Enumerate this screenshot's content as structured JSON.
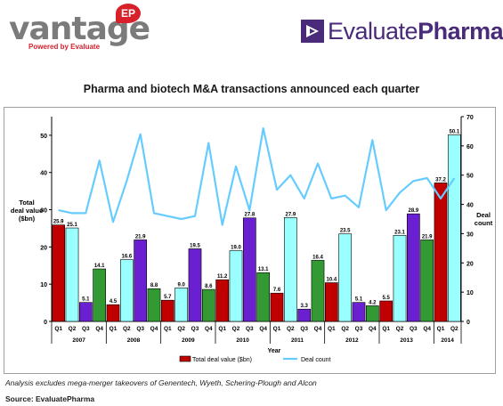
{
  "brand": {
    "vantage_word": "vantage",
    "vantage_badge": "EP",
    "vantage_tagline": "Powered by Evaluate",
    "evaluate_light": "Evaluate",
    "evaluate_bold": "Pharma",
    "evaluate_reg": "®"
  },
  "footnote": "Analysis excludes mega-merger takeovers of Genentech, Wyeth, Schering-Plough and Alcon",
  "source": "Source: EvaluatePharma",
  "chart_data": {
    "type": "bar",
    "title": "Pharma and biotech M&A transactions announced each quarter",
    "xlabel": "Year",
    "ylabel_left": [
      "Total",
      "deal value",
      "($bn)"
    ],
    "ylabel_right": [
      "Deal",
      "count"
    ],
    "ylim_left": [
      0,
      55
    ],
    "ylim_right": [
      0,
      70
    ],
    "yticks_left": [
      0,
      10,
      20,
      30,
      40,
      50
    ],
    "yticks_right": [
      0,
      10,
      20,
      30,
      40,
      50,
      60,
      70
    ],
    "grid": false,
    "legend_position": "bottom",
    "categories": [
      "Q1",
      "Q2",
      "Q3",
      "Q4",
      "Q1",
      "Q2",
      "Q3",
      "Q4",
      "Q1",
      "Q2",
      "Q3",
      "Q4",
      "Q1",
      "Q2",
      "Q3",
      "Q4",
      "Q1",
      "Q2",
      "Q3",
      "Q4",
      "Q1",
      "Q2",
      "Q3",
      "Q4",
      "Q1",
      "Q2",
      "Q3",
      "Q4",
      "Q1",
      "Q2"
    ],
    "years": [
      {
        "label": "2007",
        "start": 0,
        "end": 3
      },
      {
        "label": "2008",
        "start": 4,
        "end": 7
      },
      {
        "label": "2009",
        "start": 8,
        "end": 11
      },
      {
        "label": "2010",
        "start": 12,
        "end": 15
      },
      {
        "label": "2011",
        "start": 16,
        "end": 19
      },
      {
        "label": "2012",
        "start": 20,
        "end": 23
      },
      {
        "label": "2013",
        "start": 24,
        "end": 27
      },
      {
        "label": "2014",
        "start": 28,
        "end": 29
      }
    ],
    "quarter_colors": {
      "Q1": "#c00000",
      "Q2": "#99ffff",
      "Q3": "#6a1fd0",
      "Q4": "#339933"
    },
    "series": [
      {
        "name": "Total deal value ($bn)",
        "axis": "left",
        "kind": "bar",
        "legend_color": "#c00000",
        "values": [
          25.9,
          25.1,
          5.1,
          14.1,
          4.5,
          16.6,
          21.9,
          8.8,
          5.7,
          9.0,
          19.5,
          8.6,
          11.2,
          19.0,
          27.8,
          13.1,
          7.6,
          27.9,
          3.3,
          16.4,
          10.4,
          23.5,
          5.1,
          4.2,
          5.5,
          23.1,
          28.9,
          21.9,
          37.2,
          50.1
        ]
      },
      {
        "name": "Deal count",
        "axis": "right",
        "kind": "line",
        "color": "#66ccff",
        "values": [
          38,
          37,
          37,
          55,
          34,
          48,
          64,
          37,
          36,
          35,
          36,
          61,
          33,
          53,
          38,
          66,
          45,
          50,
          42,
          54,
          42,
          43,
          39,
          62,
          38,
          44,
          48,
          49,
          42,
          49
        ]
      }
    ]
  }
}
